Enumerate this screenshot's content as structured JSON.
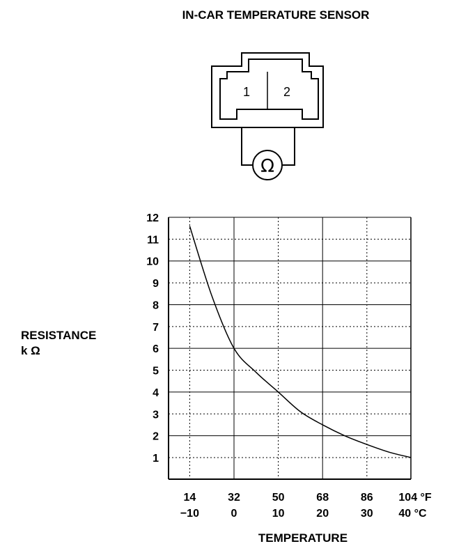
{
  "title": "IN-CAR TEMPERATURE SENSOR",
  "connector": {
    "pins": [
      "1",
      "2"
    ],
    "meter_symbol": "Ω",
    "meter_icon": "ohmmeter-icon"
  },
  "chart_data": {
    "type": "line",
    "ylabel_line1": "RESISTANCE",
    "ylabel_line2": "k Ω",
    "xlabel": "TEMPERATURE",
    "ylim": [
      0,
      12
    ],
    "yticks": [
      1,
      2,
      3,
      4,
      5,
      6,
      7,
      8,
      9,
      10,
      11,
      12
    ],
    "xlim_c": [
      -15,
      40
    ],
    "xticks_f": [
      "14",
      "32",
      "50",
      "68",
      "86",
      "104 °F"
    ],
    "xticks_c": [
      "−10",
      "0",
      "10",
      "20",
      "30",
      "40 °C"
    ],
    "xtick_c_values": [
      -10,
      0,
      10,
      20,
      30,
      40
    ],
    "series": [
      {
        "x": [
          -10,
          -5,
          0,
          5,
          10,
          15,
          20,
          25,
          30,
          35,
          40
        ],
        "y": [
          11.6,
          8.4,
          6.0,
          4.9,
          4.0,
          3.1,
          2.5,
          2.0,
          1.6,
          1.25,
          1.0
        ]
      }
    ],
    "grid": true
  }
}
